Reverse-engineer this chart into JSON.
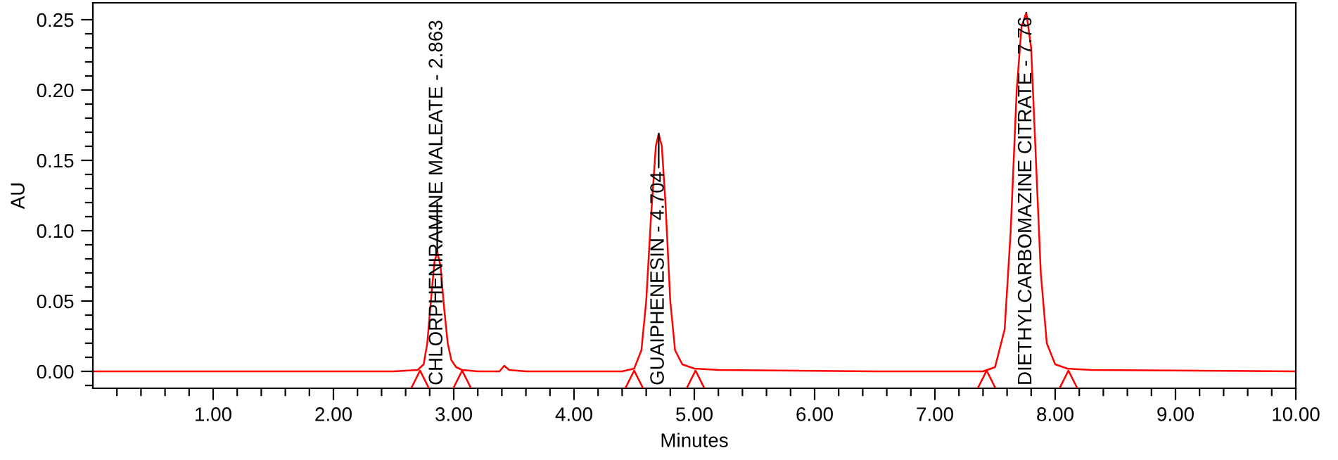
{
  "chart_data": {
    "type": "line",
    "xlabel": "Minutes",
    "ylabel": "AU",
    "xlim": [
      0,
      10
    ],
    "ylim": [
      -0.012,
      0.262
    ],
    "xticks": [
      {
        "value": 0.2,
        "label": null
      },
      {
        "value": 0.4,
        "label": null
      },
      {
        "value": 0.6,
        "label": null
      },
      {
        "value": 0.8,
        "label": null
      },
      {
        "value": 1,
        "label": "1.00"
      },
      {
        "value": 1.2,
        "label": null
      },
      {
        "value": 1.4,
        "label": null
      },
      {
        "value": 1.6,
        "label": null
      },
      {
        "value": 1.8,
        "label": null
      },
      {
        "value": 2,
        "label": "2.00"
      },
      {
        "value": 2.2,
        "label": null
      },
      {
        "value": 2.4,
        "label": null
      },
      {
        "value": 2.6,
        "label": null
      },
      {
        "value": 2.8,
        "label": null
      },
      {
        "value": 3,
        "label": "3.00"
      },
      {
        "value": 3.2,
        "label": null
      },
      {
        "value": 3.4,
        "label": null
      },
      {
        "value": 3.6,
        "label": null
      },
      {
        "value": 3.8,
        "label": null
      },
      {
        "value": 4,
        "label": "4.00"
      },
      {
        "value": 4.2,
        "label": null
      },
      {
        "value": 4.4,
        "label": null
      },
      {
        "value": 4.6,
        "label": null
      },
      {
        "value": 4.8,
        "label": null
      },
      {
        "value": 5,
        "label": "5.00"
      },
      {
        "value": 5.2,
        "label": null
      },
      {
        "value": 5.4,
        "label": null
      },
      {
        "value": 5.6,
        "label": null
      },
      {
        "value": 5.8,
        "label": null
      },
      {
        "value": 6,
        "label": "6.00"
      },
      {
        "value": 6.2,
        "label": null
      },
      {
        "value": 6.4,
        "label": null
      },
      {
        "value": 6.6,
        "label": null
      },
      {
        "value": 6.8,
        "label": null
      },
      {
        "value": 7,
        "label": "7.00"
      },
      {
        "value": 7.2,
        "label": null
      },
      {
        "value": 7.4,
        "label": null
      },
      {
        "value": 7.6,
        "label": null
      },
      {
        "value": 7.8,
        "label": null
      },
      {
        "value": 8,
        "label": "8.00"
      },
      {
        "value": 8.2,
        "label": null
      },
      {
        "value": 8.4,
        "label": null
      },
      {
        "value": 8.6,
        "label": null
      },
      {
        "value": 8.8,
        "label": null
      },
      {
        "value": 9,
        "label": "9.00"
      },
      {
        "value": 9.2,
        "label": null
      },
      {
        "value": 9.4,
        "label": null
      },
      {
        "value": 9.6,
        "label": null
      },
      {
        "value": 9.8,
        "label": null
      },
      {
        "value": 10,
        "label": "10.00"
      }
    ],
    "yticks": [
      {
        "value": -0.01,
        "label": null
      },
      {
        "value": 0,
        "label": "0.00"
      },
      {
        "value": 0.01,
        "label": null
      },
      {
        "value": 0.02,
        "label": null
      },
      {
        "value": 0.03,
        "label": null
      },
      {
        "value": 0.04,
        "label": null
      },
      {
        "value": 0.05,
        "label": "0.05"
      },
      {
        "value": 0.06,
        "label": null
      },
      {
        "value": 0.07,
        "label": null
      },
      {
        "value": 0.08,
        "label": null
      },
      {
        "value": 0.09,
        "label": null
      },
      {
        "value": 0.1,
        "label": "0.10"
      },
      {
        "value": 0.11,
        "label": null
      },
      {
        "value": 0.12,
        "label": null
      },
      {
        "value": 0.13,
        "label": null
      },
      {
        "value": 0.14,
        "label": null
      },
      {
        "value": 0.15,
        "label": "0.15"
      },
      {
        "value": 0.16,
        "label": null
      },
      {
        "value": 0.17,
        "label": null
      },
      {
        "value": 0.18,
        "label": null
      },
      {
        "value": 0.19,
        "label": null
      },
      {
        "value": 0.2,
        "label": "0.20"
      },
      {
        "value": 0.21,
        "label": null
      },
      {
        "value": 0.22,
        "label": null
      },
      {
        "value": 0.23,
        "label": null
      },
      {
        "value": 0.24,
        "label": null
      },
      {
        "value": 0.25,
        "label": "0.25"
      }
    ],
    "grid": false,
    "legend": false,
    "series": [
      {
        "type": "line",
        "color": "#ff0000",
        "x": [
          0,
          2.5,
          2.7,
          2.75,
          2.78,
          2.81,
          2.84,
          2.863,
          2.89,
          2.92,
          2.95,
          2.98,
          3.02,
          3.07,
          3.2,
          3.38,
          3.42,
          3.46,
          3.6,
          4.4,
          4.5,
          4.56,
          4.6,
          4.64,
          4.68,
          4.704,
          4.73,
          4.76,
          4.8,
          4.84,
          4.9,
          5.0,
          5.2,
          6.5,
          7.4,
          7.5,
          7.58,
          7.63,
          7.68,
          7.72,
          7.76,
          7.8,
          7.84,
          7.88,
          7.93,
          8.0,
          8.1,
          8.3,
          10
        ],
        "values": [
          0,
          0,
          0.001,
          0.005,
          0.02,
          0.05,
          0.078,
          0.085,
          0.075,
          0.045,
          0.02,
          0.008,
          0.003,
          0.001,
          0,
          0,
          0.004,
          0.001,
          0,
          0,
          0.002,
          0.015,
          0.05,
          0.11,
          0.16,
          0.169,
          0.16,
          0.12,
          0.05,
          0.015,
          0.005,
          0.002,
          0.001,
          0,
          0,
          0.003,
          0.03,
          0.1,
          0.2,
          0.245,
          0.255,
          0.23,
          0.15,
          0.07,
          0.02,
          0.005,
          0.002,
          0.001,
          0
        ]
      },
      {
        "type": "scatter",
        "color": "#ff0000",
        "marker": "triangle",
        "x": [
          2.72,
          3.07,
          4.5,
          5.01,
          7.43,
          8.11
        ],
        "values": [
          -0.006,
          -0.006,
          -0.006,
          -0.006,
          -0.006,
          -0.006
        ]
      }
    ],
    "annotations": [
      {
        "text": "CHLORPHENIRAMINE MALEATE - 2.863",
        "x": 2.863,
        "y": 0.085
      },
      {
        "text": "GUAIPHENESIN - 4.704",
        "x": 4.704,
        "y": 0.169
      },
      {
        "text": "DIETHYLCARBOMAZINE CITRATE - 7.76",
        "x": 7.76,
        "y": 0.255
      }
    ]
  }
}
